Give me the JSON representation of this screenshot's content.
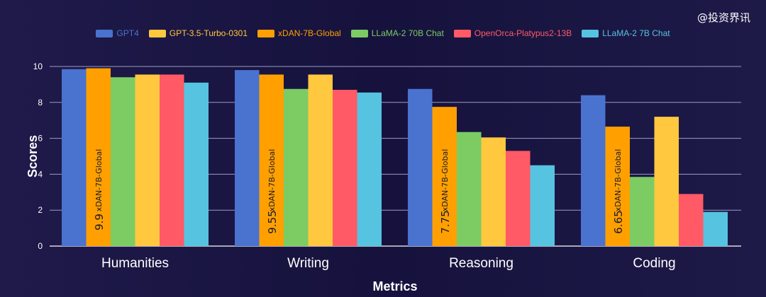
{
  "watermark": "@投资界讯",
  "colors": {
    "grid": "#9c9cc4",
    "axis": "#ffffff"
  },
  "chart_data": {
    "type": "bar",
    "xlabel": "Metrics",
    "ylabel": "Scores",
    "ylim": [
      0,
      10
    ],
    "yticks": [
      0,
      2,
      4,
      6,
      8,
      10
    ],
    "grid": true,
    "legend_position": "top-center",
    "categories": [
      "Humanities",
      "Writing",
      "Reasoning",
      "Coding"
    ],
    "series": [
      {
        "name": "GPT4",
        "color": "#4a72cf",
        "values": [
          9.85,
          9.8,
          8.75,
          8.4
        ]
      },
      {
        "name": "GPT-3.5-Turbo-0301",
        "color": "#ffc83f",
        "values": [
          9.55,
          9.55,
          6.05,
          7.2
        ],
        "order": 4
      },
      {
        "name": "xDAN-7B-Global",
        "color": "#ffa000",
        "values": [
          9.9,
          9.55,
          7.75,
          6.65
        ],
        "order": 1
      },
      {
        "name": "LLaMA-2 70B Chat",
        "color": "#7ccc63",
        "values": [
          9.4,
          8.75,
          6.35,
          3.85
        ],
        "order": 2
      },
      {
        "name": "OpenOrca-Platypus2-13B",
        "color": "#ff5a66",
        "values": [
          9.55,
          8.7,
          5.3,
          2.9
        ]
      },
      {
        "name": "LLaMA-2 7B Chat",
        "color": "#56c3e0",
        "values": [
          9.1,
          8.55,
          4.5,
          1.9
        ]
      }
    ],
    "annotations": {
      "series": "xDAN-7B-Global",
      "bar_text": "xDAN-7B-Global",
      "value_labels": [
        "9.9",
        "9.55",
        "7.75",
        "6.65"
      ]
    }
  }
}
